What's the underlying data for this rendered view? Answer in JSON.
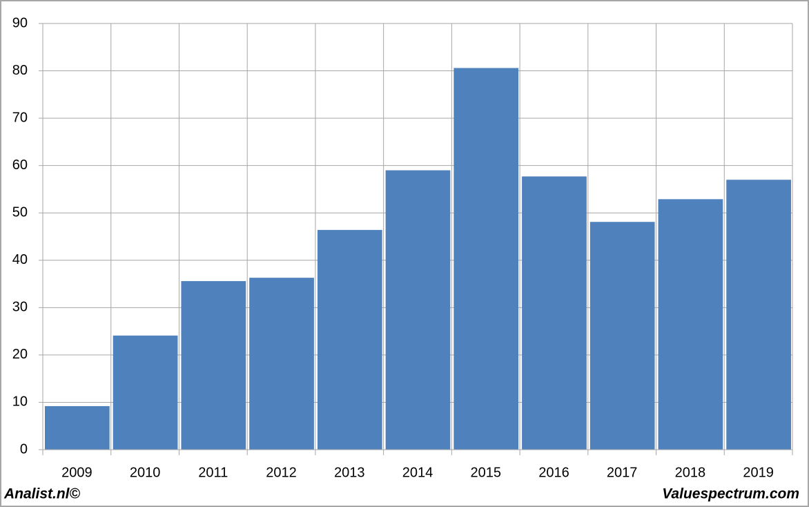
{
  "chart_data": {
    "type": "bar",
    "categories": [
      "2009",
      "2010",
      "2011",
      "2012",
      "2013",
      "2014",
      "2015",
      "2016",
      "2017",
      "2018",
      "2019"
    ],
    "values": [
      9.2,
      24.1,
      35.6,
      36.3,
      46.4,
      59.0,
      80.6,
      57.7,
      48.1,
      52.9,
      57.0
    ],
    "color": "#4f81bd",
    "ylim": [
      0,
      90
    ],
    "yticks": [
      0,
      10,
      20,
      30,
      40,
      50,
      60,
      70,
      80,
      90
    ],
    "grid": true,
    "footer_left": "Analist.nl©",
    "footer_right": "Valuespectrum.com"
  }
}
